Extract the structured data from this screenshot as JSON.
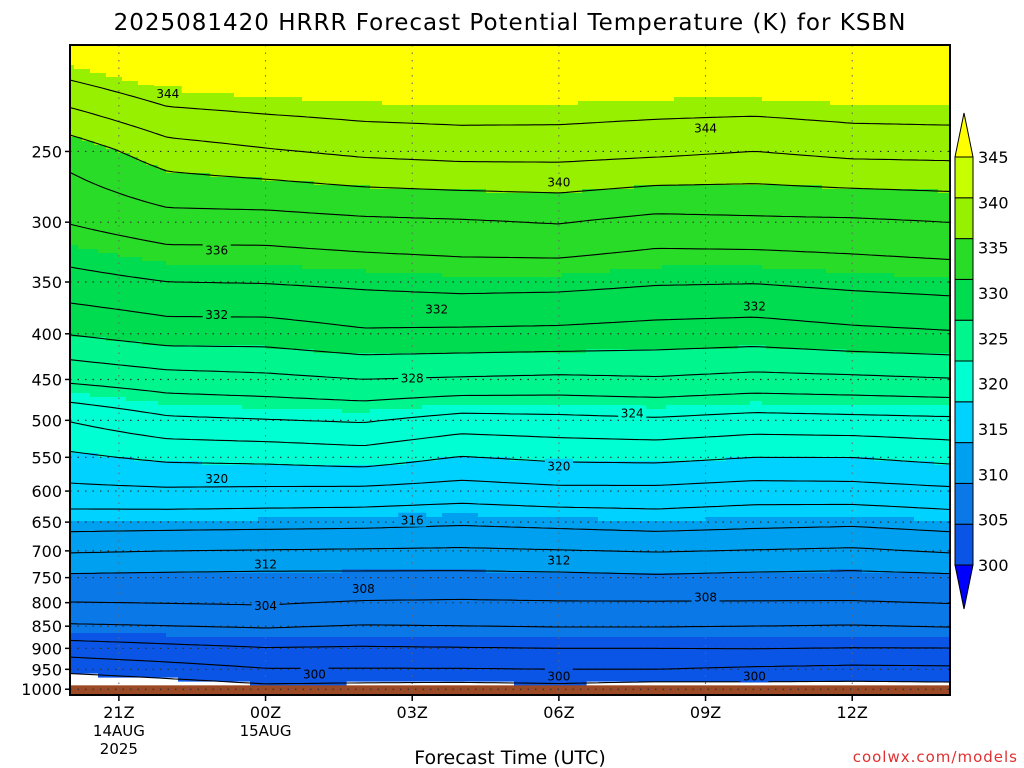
{
  "chart_data": {
    "type": "heatmap",
    "title": "2025081420 HRRR Forecast Potential Temperature (K) for KSBN",
    "xlabel": "Forecast Time (UTC)",
    "ylabel": "",
    "x_ticks": [
      {
        "hour": 0,
        "label": "21Z",
        "date": "14AUG",
        "year": "2025"
      },
      {
        "hour": 3,
        "label": "00Z",
        "date": "15AUG",
        "year": ""
      },
      {
        "hour": 6,
        "label": "03Z",
        "date": "",
        "year": ""
      },
      {
        "hour": 9,
        "label": "06Z",
        "date": "",
        "year": ""
      },
      {
        "hour": 12,
        "label": "09Z",
        "date": "",
        "year": ""
      },
      {
        "hour": 15,
        "label": "12Z",
        "date": "",
        "year": ""
      }
    ],
    "xlim": [
      -1,
      17
    ],
    "y_ticks": [
      "250",
      "300",
      "350",
      "400",
      "450",
      "500",
      "550",
      "600",
      "650",
      "700",
      "750",
      "800",
      "850",
      "900",
      "950",
      "1000"
    ],
    "ylim": [
      190,
      1015
    ],
    "y_scale": "log-pressure",
    "ground_pressure": 990,
    "grid": true,
    "colorbar": {
      "ticks": [
        "300",
        "305",
        "310",
        "315",
        "320",
        "325",
        "330",
        "335",
        "340",
        "345"
      ],
      "colors": [
        "#0000ff",
        "#0a55e6",
        "#0a78e6",
        "#00a0f0",
        "#00d2ff",
        "#00ffd2",
        "#00f58c",
        "#00dc50",
        "#28dc28",
        "#96f000",
        "#c8ff00",
        "#ffff00"
      ],
      "min": 300,
      "max": 345,
      "extend": "both"
    },
    "contour_levels": [
      300,
      302,
      304,
      306,
      308,
      310,
      312,
      314,
      316,
      318,
      320,
      322,
      324,
      326,
      328,
      330,
      332,
      334,
      336,
      338,
      340,
      342,
      344
    ],
    "contour_profiles": {
      "pressure": [
        1000,
        950,
        900,
        850,
        800,
        750,
        700,
        650,
        600,
        550,
        500,
        450,
        400,
        350,
        300,
        250,
        200
      ],
      "series": [
        {
          "hour": -1,
          "theta": [
            297.8,
            300.6,
            303.0,
            305.8,
            308.0,
            309.6,
            312.2,
            314.9,
            317.5,
            319.6,
            322.1,
            326.4,
            330.1,
            333.3,
            336.1,
            338.8,
            345.1
          ]
        },
        {
          "hour": 1,
          "theta": [
            298.6,
            301.2,
            303.5,
            306.0,
            308.1,
            309.5,
            312.0,
            314.8,
            317.7,
            320.4,
            323.6,
            327.2,
            331.0,
            334.0,
            337.2,
            341.1,
            346.7
          ]
        },
        {
          "hour": 3,
          "theta": [
            299.3,
            301.9,
            303.9,
            306.2,
            308.2,
            309.4,
            311.9,
            314.7,
            317.6,
            320.6,
            323.9,
            327.5,
            331.0,
            334.1,
            337.2,
            341.8,
            346.9
          ]
        },
        {
          "hour": 5,
          "theta": [
            299.1,
            301.9,
            303.8,
            305.9,
            307.9,
            309.4,
            311.8,
            314.6,
            317.5,
            321.0,
            324.2,
            328.0,
            331.7,
            334.4,
            337.6,
            342.4,
            347.0
          ]
        },
        {
          "hour": 7,
          "theta": [
            299.0,
            301.9,
            303.9,
            306.0,
            307.8,
            309.4,
            311.7,
            314.3,
            317.1,
            319.9,
            323.2,
            327.8,
            331.6,
            334.7,
            337.8,
            342.7,
            347.0
          ]
        },
        {
          "hour": 9,
          "theta": [
            299.2,
            302.0,
            304.0,
            306.1,
            307.9,
            309.5,
            311.9,
            314.6,
            317.5,
            320.4,
            323.4,
            327.6,
            331.5,
            334.6,
            338.1,
            342.7,
            346.9
          ]
        },
        {
          "hour": 11,
          "theta": [
            298.8,
            302.0,
            304.0,
            306.1,
            307.9,
            309.7,
            312.1,
            314.9,
            317.5,
            320.5,
            323.7,
            327.8,
            331.2,
            334.2,
            337.4,
            342.4,
            346.7
          ]
        },
        {
          "hour": 13,
          "theta": [
            299.0,
            301.7,
            304.1,
            306.0,
            307.9,
            309.5,
            311.9,
            314.6,
            317.1,
            320.0,
            323.2,
            327.4,
            331.0,
            334.1,
            337.6,
            342.0,
            346.9
          ]
        },
        {
          "hour": 15,
          "theta": [
            299.0,
            301.5,
            304.0,
            305.9,
            307.9,
            309.4,
            311.7,
            314.4,
            317.2,
            320.0,
            323.4,
            327.6,
            331.5,
            334.5,
            337.7,
            342.5,
            347.1
          ]
        },
        {
          "hour": 17,
          "theta": [
            299.1,
            301.6,
            304.0,
            306.1,
            308.1,
            309.6,
            312.2,
            314.9,
            317.6,
            320.6,
            323.6,
            327.9,
            331.8,
            334.8,
            338.0,
            342.6,
            347.2
          ]
        }
      ]
    },
    "contour_labels": [
      {
        "text": "344",
        "hour": 1.0,
        "pressure": 215
      },
      {
        "text": "344",
        "hour": 12.0,
        "pressure": 235
      },
      {
        "text": "340",
        "hour": 9.0,
        "pressure": 270
      },
      {
        "text": "336",
        "hour": 2.0,
        "pressure": 322
      },
      {
        "text": "332",
        "hour": 2.0,
        "pressure": 380
      },
      {
        "text": "332",
        "hour": 6.5,
        "pressure": 375
      },
      {
        "text": "332",
        "hour": 13.0,
        "pressure": 372
      },
      {
        "text": "328",
        "hour": 6.0,
        "pressure": 448
      },
      {
        "text": "324",
        "hour": 10.5,
        "pressure": 490
      },
      {
        "text": "320",
        "hour": 2.0,
        "pressure": 580
      },
      {
        "text": "320",
        "hour": 9.0,
        "pressure": 562
      },
      {
        "text": "316",
        "hour": 6.0,
        "pressure": 646
      },
      {
        "text": "312",
        "hour": 3.0,
        "pressure": 723
      },
      {
        "text": "312",
        "hour": 9.0,
        "pressure": 716
      },
      {
        "text": "308",
        "hour": 5.0,
        "pressure": 770
      },
      {
        "text": "308",
        "hour": 12.0,
        "pressure": 787
      },
      {
        "text": "304",
        "hour": 3.0,
        "pressure": 805
      },
      {
        "text": "300",
        "hour": 4.0,
        "pressure": 960
      },
      {
        "text": "300",
        "hour": 9.0,
        "pressure": 965
      },
      {
        "text": "300",
        "hour": 13.0,
        "pressure": 965
      }
    ],
    "source": "coolwx.com/models"
  }
}
